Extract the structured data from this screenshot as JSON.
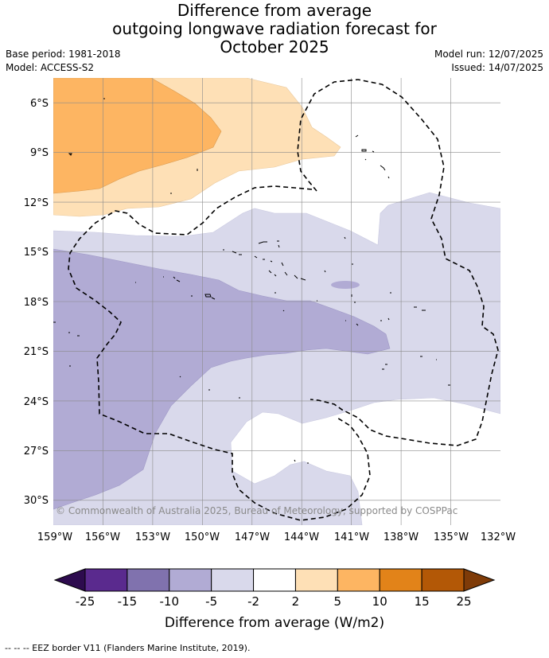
{
  "header": {
    "title_line1": "Difference from average",
    "title_line2": "outgoing longwave radiation forecast for",
    "title_line3": "October 2025",
    "base_period": "Base period: 1981-2018",
    "model": "Model: ACCESS-S2",
    "model_run": "Model run: 12/07/2025",
    "issued": "Issued: 14/07/2025"
  },
  "map": {
    "copyright": "© Commonwealth of Australia 2025, Bureau of Meteorology, supported by COSPPac",
    "footnote": "-- -- -- EEZ border V11 (Flanders Marine Institute, 2019)."
  },
  "chart_data": {
    "type": "heatmap",
    "title": "Difference from average outgoing longwave radiation forecast for October 2025",
    "x_ticks": [
      "159°W",
      "156°W",
      "153°W",
      "150°W",
      "147°W",
      "144°W",
      "141°W",
      "138°W",
      "135°W",
      "132°W"
    ],
    "x_values": [
      -159,
      -156,
      -153,
      -150,
      -147,
      -144,
      -141,
      -138,
      -135,
      -132
    ],
    "y_ticks": [
      "6°S",
      "9°S",
      "12°S",
      "15°S",
      "18°S",
      "21°S",
      "24°S",
      "27°S",
      "30°S"
    ],
    "y_values": [
      -6,
      -9,
      -12,
      -15,
      -18,
      -21,
      -24,
      -27,
      -30
    ],
    "xlim": [
      -159,
      -132
    ],
    "ylim": [
      -31.5,
      -4.5
    ],
    "grid": true,
    "colorbar": {
      "label": "Difference from average (W/m2)",
      "bounds": [
        -25,
        -15,
        -10,
        -5,
        -2,
        2,
        5,
        10,
        15,
        25
      ],
      "tick_labels": [
        "-25",
        "-15",
        "-10",
        "-5",
        "-2",
        "2",
        "5",
        "10",
        "15",
        "25"
      ],
      "colors": [
        "#5a2a8e",
        "#8072ae",
        "#b1abd4",
        "#d9d9eb",
        "#ffffff",
        "#fee0b6",
        "#fdb562",
        "#e28319",
        "#b35806"
      ],
      "extend_low_color": "#2d0b4e",
      "extend_high_color": "#7f3b08"
    }
  }
}
